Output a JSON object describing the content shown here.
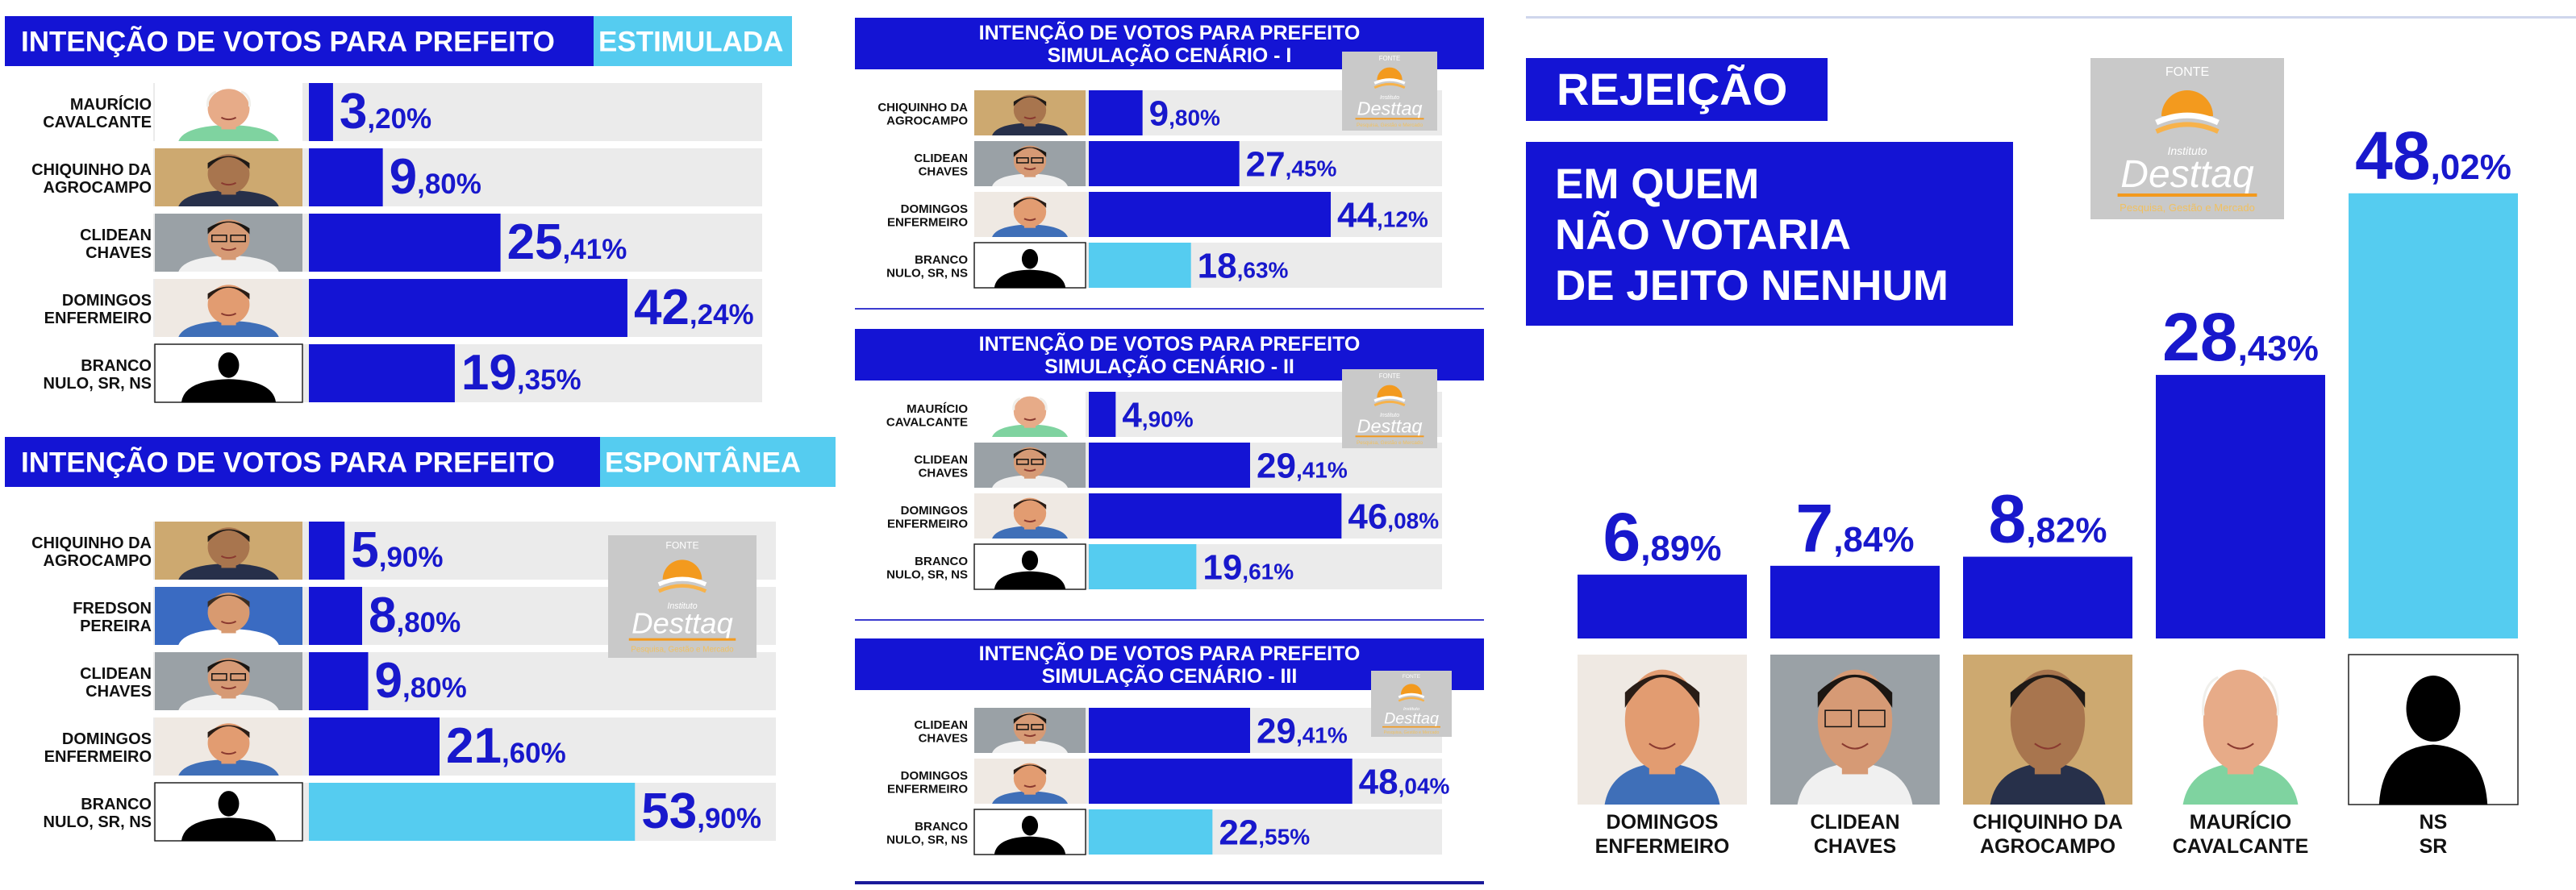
{
  "colors": {
    "blue": "#1414d4",
    "light": "#55ccf0",
    "bg": "#ebebeb",
    "text": "#1818cc"
  },
  "logo": {
    "fonte": "FONTE",
    "small": "Instituto",
    "name": "Desttaq",
    "tag": "Pesquisa, Gestão e Mercado"
  },
  "panels": {
    "estimulada": {
      "title": "INTENÇÃO DE VOTOS PARA PREFEITO",
      "highlight": "ESTIMULADA",
      "rows": [
        {
          "name": [
            "MAURÍCIO",
            "CAVALCANTE"
          ],
          "int": "3",
          "dec": ",20%",
          "value": 3.2,
          "type": "blue",
          "photo": "mauricio"
        },
        {
          "name": [
            "CHIQUINHO DA",
            "AGROCAMPO"
          ],
          "int": "9",
          "dec": ",80%",
          "value": 9.8,
          "type": "blue",
          "photo": "chiquinho"
        },
        {
          "name": [
            "CLIDEAN",
            "CHAVES"
          ],
          "int": "25",
          "dec": ",41%",
          "value": 25.41,
          "type": "blue",
          "photo": "clidean"
        },
        {
          "name": [
            "DOMINGOS",
            "ENFERMEIRO"
          ],
          "int": "42",
          "dec": ",24%",
          "value": 42.24,
          "type": "blue",
          "photo": "domingos"
        },
        {
          "name": [
            "BRANCO",
            "NULO, SR, NS"
          ],
          "int": "19",
          "dec": ",35%",
          "value": 19.35,
          "type": "blue",
          "photo": "silhouette"
        }
      ]
    },
    "espontanea": {
      "title": "INTENÇÃO DE VOTOS PARA PREFEITO",
      "highlight": "ESPONTÂNEA",
      "rows": [
        {
          "name": [
            "CHIQUINHO DA",
            "AGROCAMPO"
          ],
          "int": "5",
          "dec": ",90%",
          "value": 5.9,
          "type": "blue",
          "photo": "chiquinho"
        },
        {
          "name": [
            "FREDSON",
            "PEREIRA"
          ],
          "int": "8",
          "dec": ",80%",
          "value": 8.8,
          "type": "blue",
          "photo": "fredson"
        },
        {
          "name": [
            "CLIDEAN",
            "CHAVES"
          ],
          "int": "9",
          "dec": ",80%",
          "value": 9.8,
          "type": "blue",
          "photo": "clidean"
        },
        {
          "name": [
            "DOMINGOS",
            "ENFERMEIRO"
          ],
          "int": "21",
          "dec": ",60%",
          "value": 21.6,
          "type": "blue",
          "photo": "domingos"
        },
        {
          "name": [
            "BRANCO",
            "NULO, SR, NS"
          ],
          "int": "53",
          "dec": ",90%",
          "value": 53.9,
          "type": "light",
          "photo": "silhouette"
        }
      ]
    },
    "cenario1": {
      "title": [
        "INTENÇÃO DE VOTOS PARA PREFEITO",
        "SIMULAÇÃO CENÁRIO - I"
      ],
      "rows": [
        {
          "name": [
            "CHIQUINHO DA",
            "AGROCAMPO"
          ],
          "int": "9",
          "dec": ",80%",
          "value": 9.8,
          "type": "blue",
          "photo": "chiquinho"
        },
        {
          "name": [
            "CLIDEAN",
            "CHAVES"
          ],
          "int": "27",
          "dec": ",45%",
          "value": 27.45,
          "type": "blue",
          "photo": "clidean"
        },
        {
          "name": [
            "DOMINGOS",
            "ENFERMEIRO"
          ],
          "int": "44",
          "dec": ",12%",
          "value": 44.12,
          "type": "blue",
          "photo": "domingos"
        },
        {
          "name": [
            "BRANCO",
            "NULO, SR, NS"
          ],
          "int": "18",
          "dec": ",63%",
          "value": 18.63,
          "type": "light",
          "photo": "silhouette"
        }
      ]
    },
    "cenario2": {
      "title": [
        "INTENÇÃO DE VOTOS PARA PREFEITO",
        "SIMULAÇÃO CENÁRIO - II"
      ],
      "rows": [
        {
          "name": [
            "MAURÍCIO",
            "CAVALCANTE"
          ],
          "int": "4",
          "dec": ",90%",
          "value": 4.9,
          "type": "blue",
          "photo": "mauricio"
        },
        {
          "name": [
            "CLIDEAN",
            "CHAVES"
          ],
          "int": "29",
          "dec": ",41%",
          "value": 29.41,
          "type": "blue",
          "photo": "clidean"
        },
        {
          "name": [
            "DOMINGOS",
            "ENFERMEIRO"
          ],
          "int": "46",
          "dec": ",08%",
          "value": 46.08,
          "type": "blue",
          "photo": "domingos"
        },
        {
          "name": [
            "BRANCO",
            "NULO, SR, NS"
          ],
          "int": "19",
          "dec": ",61%",
          "value": 19.61,
          "type": "light",
          "photo": "silhouette"
        }
      ]
    },
    "cenario3": {
      "title": [
        "INTENÇÃO DE VOTOS PARA PREFEITO",
        "SIMULAÇÃO CENÁRIO - III"
      ],
      "rows": [
        {
          "name": [
            "CLIDEAN",
            "CHAVES"
          ],
          "int": "29",
          "dec": ",41%",
          "value": 29.41,
          "type": "blue",
          "photo": "clidean"
        },
        {
          "name": [
            "DOMINGOS",
            "ENFERMEIRO"
          ],
          "int": "48",
          "dec": ",04%",
          "value": 48.04,
          "type": "blue",
          "photo": "domingos"
        },
        {
          "name": [
            "BRANCO",
            "NULO, SR, NS"
          ],
          "int": "22",
          "dec": ",55%",
          "value": 22.55,
          "type": "light",
          "photo": "silhouette"
        }
      ]
    }
  },
  "rejeicao": {
    "title": "REJEIÇÃO",
    "subtitle": [
      "EM QUEM",
      "NÃO VOTARIA",
      "DE JEITO NENHUM"
    ],
    "bars": [
      {
        "name": [
          "DOMINGOS",
          "ENFERMEIRO"
        ],
        "int": "6",
        "dec": ",89%",
        "value": 6.89,
        "type": "blue",
        "photo": "domingos"
      },
      {
        "name": [
          "CLIDEAN",
          "CHAVES"
        ],
        "int": "7",
        "dec": ",84%",
        "value": 7.84,
        "type": "blue",
        "photo": "clidean"
      },
      {
        "name": [
          "CHIQUINHO DA",
          "AGROCAMPO"
        ],
        "int": "8",
        "dec": ",82%",
        "value": 8.82,
        "type": "blue",
        "photo": "chiquinho"
      },
      {
        "name": [
          "MAURÍCIO",
          "CAVALCANTE"
        ],
        "int": "28",
        "dec": ",43%",
        "value": 28.43,
        "type": "blue",
        "photo": "mauricio"
      },
      {
        "name": [
          "NS",
          "SR"
        ],
        "int": "48",
        "dec": ",02%",
        "value": 48.02,
        "type": "light",
        "photo": "silhouette"
      }
    ]
  },
  "chart_data": [
    {
      "type": "bar",
      "title": "INTENÇÃO DE VOTOS PARA PREFEITO ESTIMULADA",
      "categories": [
        "MAURÍCIO CAVALCANTE",
        "CHIQUINHO DA AGROCAMPO",
        "CLIDEAN CHAVES",
        "DOMINGOS ENFERMEIRO",
        "BRANCO NULO, SR, NS"
      ],
      "values": [
        3.2,
        9.8,
        25.41,
        42.24,
        19.35
      ]
    },
    {
      "type": "bar",
      "title": "INTENÇÃO DE VOTOS PARA PREFEITO ESPONTÂNEA",
      "categories": [
        "CHIQUINHO DA AGROCAMPO",
        "FREDSON PEREIRA",
        "CLIDEAN CHAVES",
        "DOMINGOS ENFERMEIRO",
        "BRANCO NULO, SR, NS"
      ],
      "values": [
        5.9,
        8.8,
        9.8,
        21.6,
        53.9
      ]
    },
    {
      "type": "bar",
      "title": "INTENÇÃO DE VOTOS PARA PREFEITO SIMULAÇÃO CENÁRIO - I",
      "categories": [
        "CHIQUINHO DA AGROCAMPO",
        "CLIDEAN CHAVES",
        "DOMINGOS ENFERMEIRO",
        "BRANCO NULO, SR, NS"
      ],
      "values": [
        9.8,
        27.45,
        44.12,
        18.63
      ]
    },
    {
      "type": "bar",
      "title": "INTENÇÃO DE VOTOS PARA PREFEITO SIMULAÇÃO CENÁRIO - II",
      "categories": [
        "MAURÍCIO CAVALCANTE",
        "CLIDEAN CHAVES",
        "DOMINGOS ENFERMEIRO",
        "BRANCO NULO, SR, NS"
      ],
      "values": [
        4.9,
        29.41,
        46.08,
        19.61
      ]
    },
    {
      "type": "bar",
      "title": "INTENÇÃO DE VOTOS PARA PREFEITO SIMULAÇÃO CENÁRIO - III",
      "categories": [
        "CLIDEAN CHAVES",
        "DOMINGOS ENFERMEIRO",
        "BRANCO NULO, SR, NS"
      ],
      "values": [
        29.41,
        48.04,
        22.55
      ]
    },
    {
      "type": "bar",
      "title": "REJEIÇÃO EM QUEM NÃO VOTARIA DE JEITO NENHUM",
      "categories": [
        "DOMINGOS ENFERMEIRO",
        "CLIDEAN CHAVES",
        "CHIQUINHO DA AGROCAMPO",
        "MAURÍCIO CAVALCANTE",
        "NS SR"
      ],
      "values": [
        6.89,
        7.84,
        8.82,
        28.43,
        48.02
      ]
    }
  ]
}
